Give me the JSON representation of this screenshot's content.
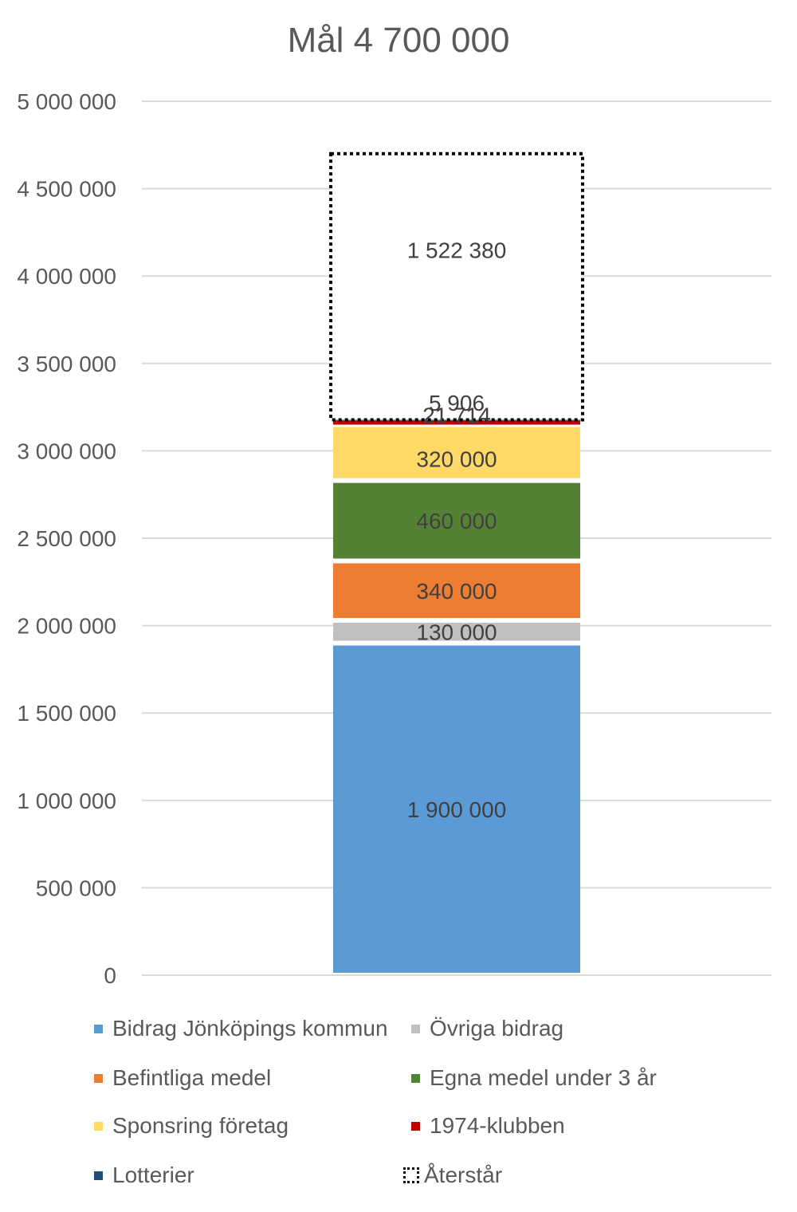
{
  "chart_data": {
    "type": "bar",
    "stacked": true,
    "title": "Mål 4 700 000",
    "xlabel": "",
    "ylabel": "",
    "ylim": [
      0,
      5000000
    ],
    "yticks": [
      0,
      500000,
      1000000,
      1500000,
      2000000,
      2500000,
      3000000,
      3500000,
      4000000,
      4500000,
      5000000
    ],
    "ytick_labels": [
      "0",
      "500 000",
      "1 000 000",
      "1 500 000",
      "2 000 000",
      "2 500 000",
      "3 000 000",
      "3 500 000",
      "4 000 000",
      "4 500 000",
      "5 000 000"
    ],
    "grid": true,
    "legend_position": "bottom",
    "series": [
      {
        "name": "Bidrag Jönköpings kommun",
        "values": [
          1900000
        ],
        "label": "1 900 000",
        "color": "#5B9BD5"
      },
      {
        "name": "Övriga bidrag",
        "values": [
          130000
        ],
        "label": "130 000",
        "color": "#BFBFBF"
      },
      {
        "name": "Befintliga medel",
        "values": [
          340000
        ],
        "label": "340 000",
        "color": "#ED7D31"
      },
      {
        "name": "Egna medel under 3 år",
        "values": [
          460000
        ],
        "label": "460 000",
        "color": "#548235"
      },
      {
        "name": "Sponsring företag",
        "values": [
          320000
        ],
        "label": "320 000",
        "color": "#FFD966"
      },
      {
        "name": "1974-klubben",
        "values": [
          21714
        ],
        "label": "21 714",
        "color": "#C00000"
      },
      {
        "name": "Lotterier",
        "values": [
          5906
        ],
        "label": "5 906",
        "color": "#1F4E79"
      },
      {
        "name": "Återstår",
        "values": [
          1522380
        ],
        "label": "1 522 380",
        "color": "#FFFFFF",
        "outline": "dotted"
      }
    ]
  }
}
